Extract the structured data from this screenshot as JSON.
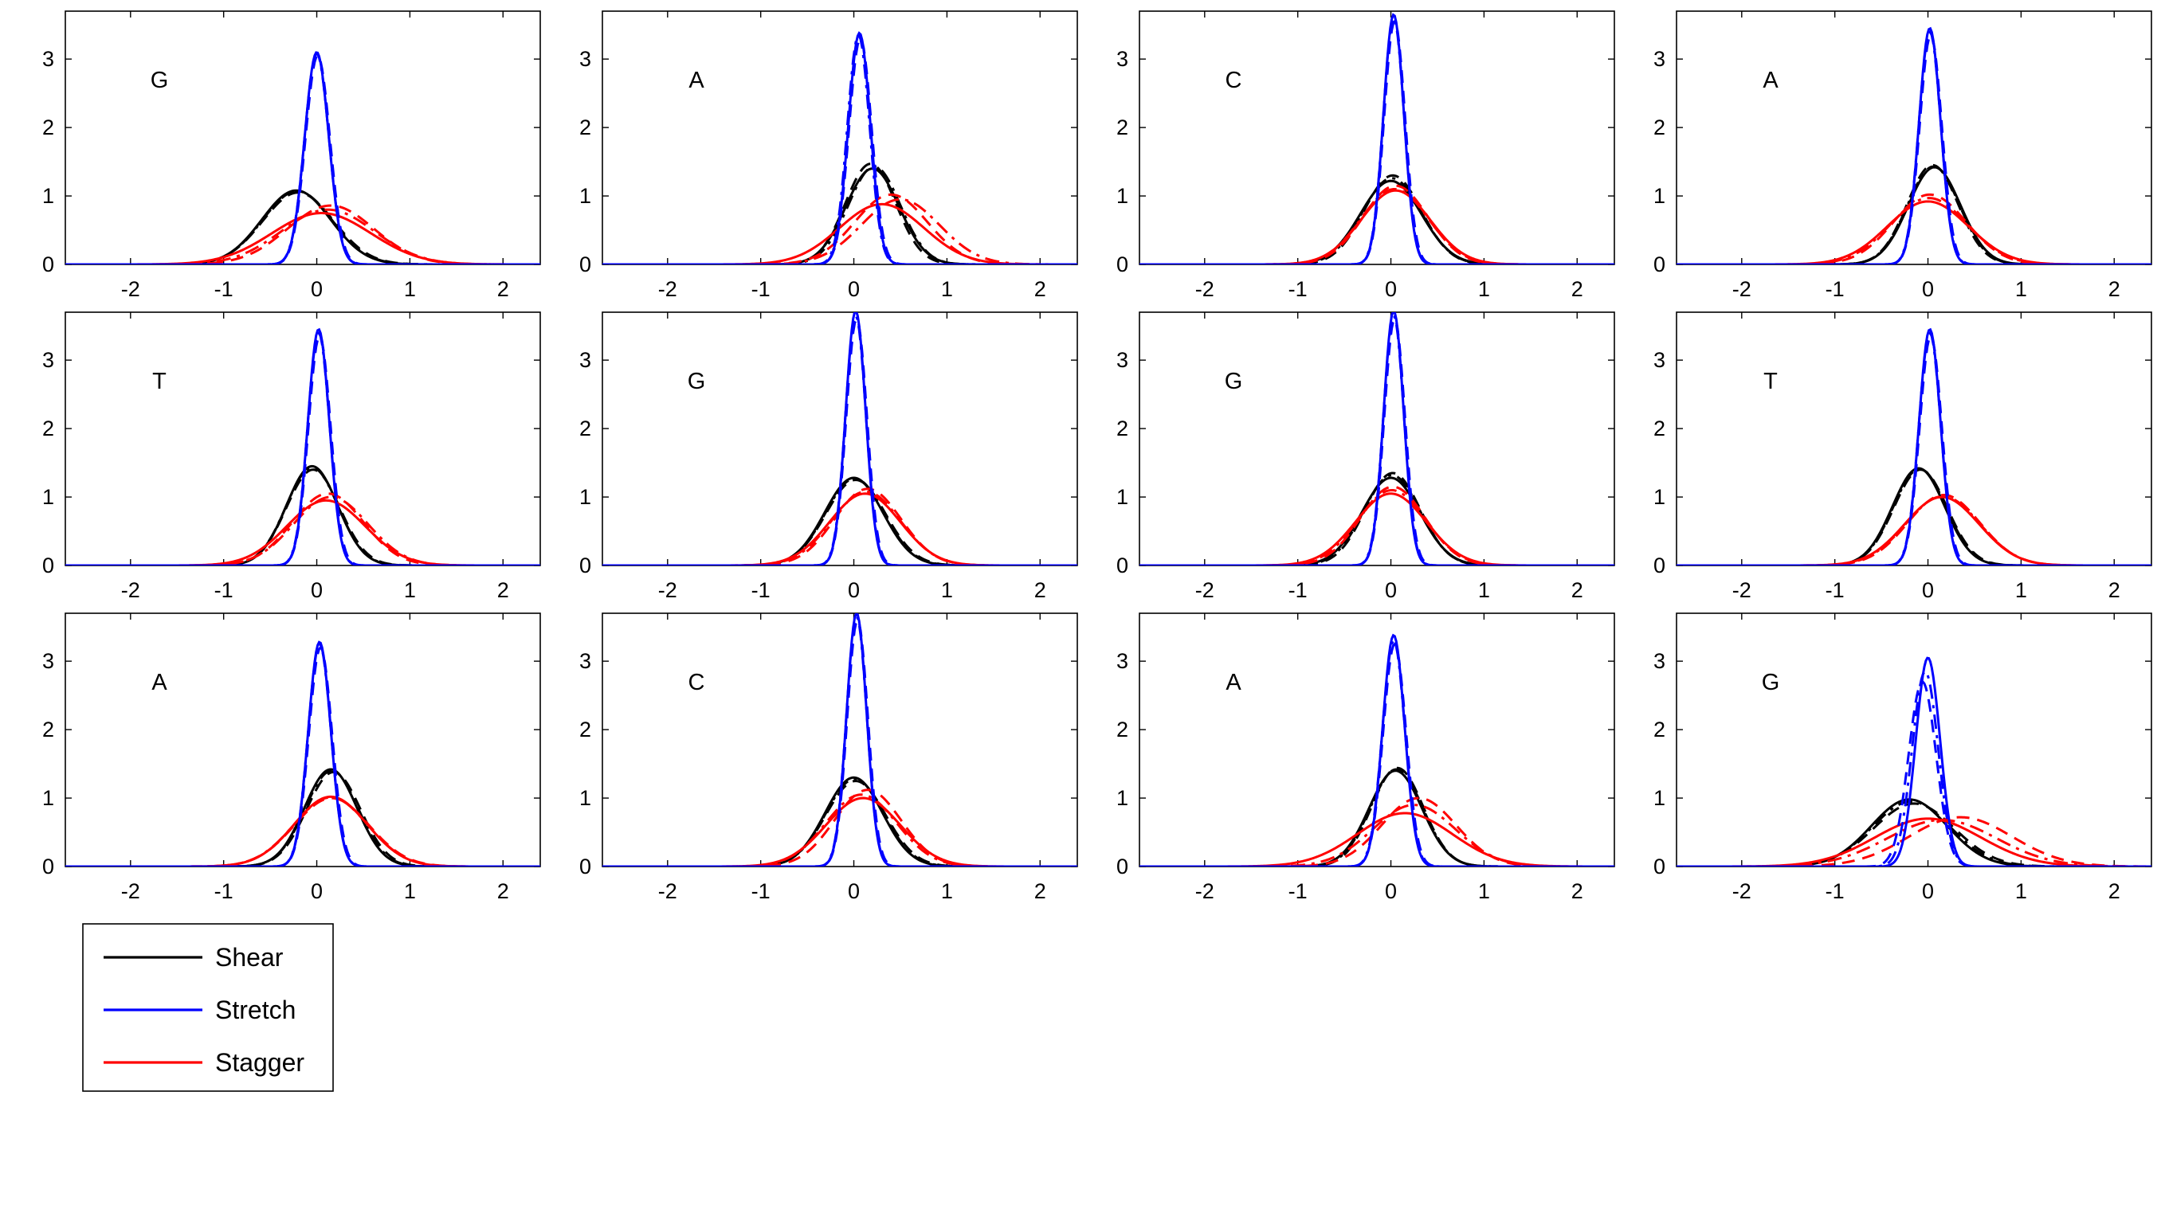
{
  "chart_data": {
    "type": "line",
    "layout": "3 rows x 4 columns of small-multiple density plots",
    "xlim": [
      -2.7,
      2.4
    ],
    "ylim": [
      0,
      3.7
    ],
    "xticks": [
      -2,
      -1,
      0,
      1,
      2
    ],
    "yticks": [
      0,
      1,
      2,
      3
    ],
    "grid": false,
    "legend": {
      "placement": "below bottom-left panel",
      "entries": [
        {
          "label": "Shear",
          "color": "#000000"
        },
        {
          "label": "Stretch",
          "color": "#0000ff"
        },
        {
          "label": "Stagger",
          "color": "#ff0000"
        }
      ]
    },
    "note": "Each curve is a Gaussian density; solid, dashed and dash-dot variants per parameter. Values given as peak height and center.",
    "panels": [
      {
        "label": "G",
        "series": [
          {
            "name": "Shear",
            "color": "#000000",
            "curves": [
              {
                "peak": 1.08,
                "center": -0.22
              },
              {
                "peak": 1.05,
                "center": -0.2
              },
              {
                "peak": 1.07,
                "center": -0.21
              }
            ]
          },
          {
            "name": "Stretch",
            "color": "#0000ff",
            "curves": [
              {
                "peak": 3.1,
                "center": 0.0
              },
              {
                "peak": 3.05,
                "center": 0.01
              },
              {
                "peak": 3.08,
                "center": 0.0
              }
            ]
          },
          {
            "name": "Stagger",
            "color": "#ff0000",
            "curves": [
              {
                "peak": 0.75,
                "center": 0.05
              },
              {
                "peak": 0.86,
                "center": 0.15
              },
              {
                "peak": 0.8,
                "center": 0.12
              }
            ]
          }
        ]
      },
      {
        "label": "A",
        "series": [
          {
            "name": "Shear",
            "color": "#000000",
            "curves": [
              {
                "peak": 1.4,
                "center": 0.2
              },
              {
                "peak": 1.47,
                "center": 0.18
              },
              {
                "peak": 1.43,
                "center": 0.22
              }
            ]
          },
          {
            "name": "Stretch",
            "color": "#0000ff",
            "curves": [
              {
                "peak": 3.38,
                "center": 0.06
              },
              {
                "peak": 3.3,
                "center": 0.07
              },
              {
                "peak": 3.35,
                "center": 0.05
              }
            ]
          },
          {
            "name": "Stagger",
            "color": "#ff0000",
            "curves": [
              {
                "peak": 0.88,
                "center": 0.3
              },
              {
                "peak": 1.02,
                "center": 0.4
              },
              {
                "peak": 0.95,
                "center": 0.5
              }
            ]
          }
        ]
      },
      {
        "label": "C",
        "series": [
          {
            "name": "Shear",
            "color": "#000000",
            "curves": [
              {
                "peak": 1.22,
                "center": 0.0
              },
              {
                "peak": 1.3,
                "center": 0.02
              },
              {
                "peak": 1.26,
                "center": 0.01
              }
            ]
          },
          {
            "name": "Stretch",
            "color": "#0000ff",
            "curves": [
              {
                "peak": 3.65,
                "center": 0.03
              },
              {
                "peak": 3.55,
                "center": 0.04
              },
              {
                "peak": 3.6,
                "center": 0.03
              }
            ]
          },
          {
            "name": "Stagger",
            "color": "#ff0000",
            "curves": [
              {
                "peak": 1.08,
                "center": 0.05
              },
              {
                "peak": 1.15,
                "center": 0.05
              },
              {
                "peak": 1.1,
                "center": 0.04
              }
            ]
          }
        ]
      },
      {
        "label": "A",
        "series": [
          {
            "name": "Shear",
            "color": "#000000",
            "curves": [
              {
                "peak": 1.42,
                "center": 0.07
              },
              {
                "peak": 1.45,
                "center": 0.05
              },
              {
                "peak": 1.43,
                "center": 0.06
              }
            ]
          },
          {
            "name": "Stretch",
            "color": "#0000ff",
            "curves": [
              {
                "peak": 3.45,
                "center": 0.02
              },
              {
                "peak": 3.35,
                "center": 0.03
              },
              {
                "peak": 3.4,
                "center": 0.02
              }
            ]
          },
          {
            "name": "Stagger",
            "color": "#ff0000",
            "curves": [
              {
                "peak": 0.92,
                "center": 0.0
              },
              {
                "peak": 1.02,
                "center": 0.02
              },
              {
                "peak": 0.97,
                "center": 0.01
              }
            ]
          }
        ]
      },
      {
        "label": "T",
        "series": [
          {
            "name": "Shear",
            "color": "#000000",
            "curves": [
              {
                "peak": 1.45,
                "center": -0.05
              },
              {
                "peak": 1.4,
                "center": -0.04
              },
              {
                "peak": 1.43,
                "center": -0.05
              }
            ]
          },
          {
            "name": "Stretch",
            "color": "#0000ff",
            "curves": [
              {
                "peak": 3.45,
                "center": 0.02
              },
              {
                "peak": 3.35,
                "center": 0.03
              },
              {
                "peak": 3.4,
                "center": 0.02
              }
            ]
          },
          {
            "name": "Stagger",
            "color": "#ff0000",
            "curves": [
              {
                "peak": 0.95,
                "center": 0.1
              },
              {
                "peak": 1.05,
                "center": 0.12
              },
              {
                "peak": 1.0,
                "center": 0.15
              }
            ]
          }
        ]
      },
      {
        "label": "G",
        "series": [
          {
            "name": "Shear",
            "color": "#000000",
            "curves": [
              {
                "peak": 1.28,
                "center": 0.0
              },
              {
                "peak": 1.25,
                "center": 0.02
              },
              {
                "peak": 1.27,
                "center": 0.01
              }
            ]
          },
          {
            "name": "Stretch",
            "color": "#0000ff",
            "curves": [
              {
                "peak": 3.72,
                "center": 0.02
              },
              {
                "peak": 3.6,
                "center": 0.03
              },
              {
                "peak": 3.65,
                "center": 0.02
              }
            ]
          },
          {
            "name": "Stagger",
            "color": "#ff0000",
            "curves": [
              {
                "peak": 1.05,
                "center": 0.12
              },
              {
                "peak": 1.12,
                "center": 0.15
              },
              {
                "peak": 1.08,
                "center": 0.13
              }
            ]
          }
        ]
      },
      {
        "label": "G",
        "series": [
          {
            "name": "Shear",
            "color": "#000000",
            "curves": [
              {
                "peak": 1.28,
                "center": 0.0
              },
              {
                "peak": 1.35,
                "center": 0.02
              },
              {
                "peak": 1.32,
                "center": 0.01
              }
            ]
          },
          {
            "name": "Stretch",
            "color": "#0000ff",
            "curves": [
              {
                "peak": 3.72,
                "center": 0.03
              },
              {
                "peak": 3.6,
                "center": 0.04
              },
              {
                "peak": 3.65,
                "center": 0.03
              }
            ]
          },
          {
            "name": "Stagger",
            "color": "#ff0000",
            "curves": [
              {
                "peak": 1.05,
                "center": 0.0
              },
              {
                "peak": 1.15,
                "center": 0.02
              },
              {
                "peak": 1.1,
                "center": 0.01
              }
            ]
          }
        ]
      },
      {
        "label": "T",
        "series": [
          {
            "name": "Shear",
            "color": "#000000",
            "curves": [
              {
                "peak": 1.42,
                "center": -0.1
              },
              {
                "peak": 1.4,
                "center": -0.08
              },
              {
                "peak": 1.41,
                "center": -0.09
              }
            ]
          },
          {
            "name": "Stretch",
            "color": "#0000ff",
            "curves": [
              {
                "peak": 3.45,
                "center": 0.02
              },
              {
                "peak": 3.35,
                "center": 0.03
              },
              {
                "peak": 3.4,
                "center": 0.02
              }
            ]
          },
          {
            "name": "Stagger",
            "color": "#ff0000",
            "curves": [
              {
                "peak": 1.0,
                "center": 0.15
              },
              {
                "peak": 1.03,
                "center": 0.17
              },
              {
                "peak": 1.01,
                "center": 0.16
              }
            ]
          }
        ]
      },
      {
        "label": "A",
        "series": [
          {
            "name": "Shear",
            "color": "#000000",
            "curves": [
              {
                "peak": 1.42,
                "center": 0.15
              },
              {
                "peak": 1.38,
                "center": 0.18
              },
              {
                "peak": 1.4,
                "center": 0.16
              }
            ]
          },
          {
            "name": "Stretch",
            "color": "#0000ff",
            "curves": [
              {
                "peak": 3.28,
                "center": 0.03
              },
              {
                "peak": 3.2,
                "center": 0.04
              },
              {
                "peak": 3.25,
                "center": 0.03
              }
            ]
          },
          {
            "name": "Stagger",
            "color": "#ff0000",
            "curves": [
              {
                "peak": 1.02,
                "center": 0.15
              },
              {
                "peak": 1.0,
                "center": 0.16
              },
              {
                "peak": 1.01,
                "center": 0.15
              }
            ]
          }
        ]
      },
      {
        "label": "C",
        "series": [
          {
            "name": "Shear",
            "color": "#000000",
            "curves": [
              {
                "peak": 1.3,
                "center": 0.0
              },
              {
                "peak": 1.25,
                "center": 0.02
              },
              {
                "peak": 1.28,
                "center": 0.01
              }
            ]
          },
          {
            "name": "Stretch",
            "color": "#0000ff",
            "curves": [
              {
                "peak": 3.7,
                "center": 0.03
              },
              {
                "peak": 3.6,
                "center": 0.04
              },
              {
                "peak": 3.65,
                "center": 0.03
              }
            ]
          },
          {
            "name": "Stagger",
            "color": "#ff0000",
            "curves": [
              {
                "peak": 1.0,
                "center": 0.1
              },
              {
                "peak": 1.12,
                "center": 0.15
              },
              {
                "peak": 1.05,
                "center": 0.08
              }
            ]
          }
        ]
      },
      {
        "label": "A",
        "series": [
          {
            "name": "Shear",
            "color": "#000000",
            "curves": [
              {
                "peak": 1.4,
                "center": 0.05
              },
              {
                "peak": 1.44,
                "center": 0.07
              },
              {
                "peak": 1.42,
                "center": 0.06
              }
            ]
          },
          {
            "name": "Stretch",
            "color": "#0000ff",
            "curves": [
              {
                "peak": 3.38,
                "center": 0.03
              },
              {
                "peak": 3.25,
                "center": 0.04
              },
              {
                "peak": 3.3,
                "center": 0.03
              }
            ]
          },
          {
            "name": "Stagger",
            "color": "#ff0000",
            "curves": [
              {
                "peak": 0.78,
                "center": 0.15
              },
              {
                "peak": 1.0,
                "center": 0.3
              },
              {
                "peak": 0.9,
                "center": 0.25
              }
            ]
          }
        ]
      },
      {
        "label": "G",
        "series": [
          {
            "name": "Shear",
            "color": "#000000",
            "curves": [
              {
                "peak": 0.98,
                "center": -0.2
              },
              {
                "peak": 0.92,
                "center": -0.15
              },
              {
                "peak": 0.95,
                "center": -0.18
              }
            ]
          },
          {
            "name": "Stretch",
            "color": "#0000ff",
            "curves": [
              {
                "peak": 3.05,
                "center": 0.0
              },
              {
                "peak": 2.7,
                "center": -0.06
              },
              {
                "peak": 2.85,
                "center": -0.03
              }
            ]
          },
          {
            "name": "Stagger",
            "color": "#ff0000",
            "curves": [
              {
                "peak": 0.7,
                "center": 0.0
              },
              {
                "peak": 0.72,
                "center": 0.35
              },
              {
                "peak": 0.68,
                "center": 0.15
              }
            ]
          }
        ]
      }
    ]
  }
}
